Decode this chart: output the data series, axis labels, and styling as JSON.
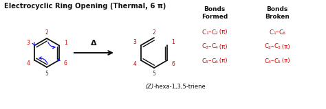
{
  "title": "Electrocyclic Ring Opening (Thermal, 6 π)",
  "background_color": "#ffffff",
  "red_color": "#cc0000",
  "blue_color": "#1a1aff",
  "black_color": "#111111",
  "bonds_formed_header": "Bonds\nFormed",
  "bonds_broken_header": "Bonds\nBroken",
  "bonds_formed": [
    [
      "1",
      "2",
      " (π)"
    ],
    [
      "3",
      "4",
      " (π)"
    ],
    [
      "5",
      "6",
      " (π)"
    ]
  ],
  "bonds_broken": [
    [
      "1",
      "6",
      ""
    ],
    [
      "2",
      "3",
      " (π)"
    ],
    [
      "4",
      "5",
      " (π)"
    ]
  ],
  "caption_italic": "(Z)",
  "caption_rest": "-hexa-1,3,5-triene",
  "delta_label": "Δ"
}
